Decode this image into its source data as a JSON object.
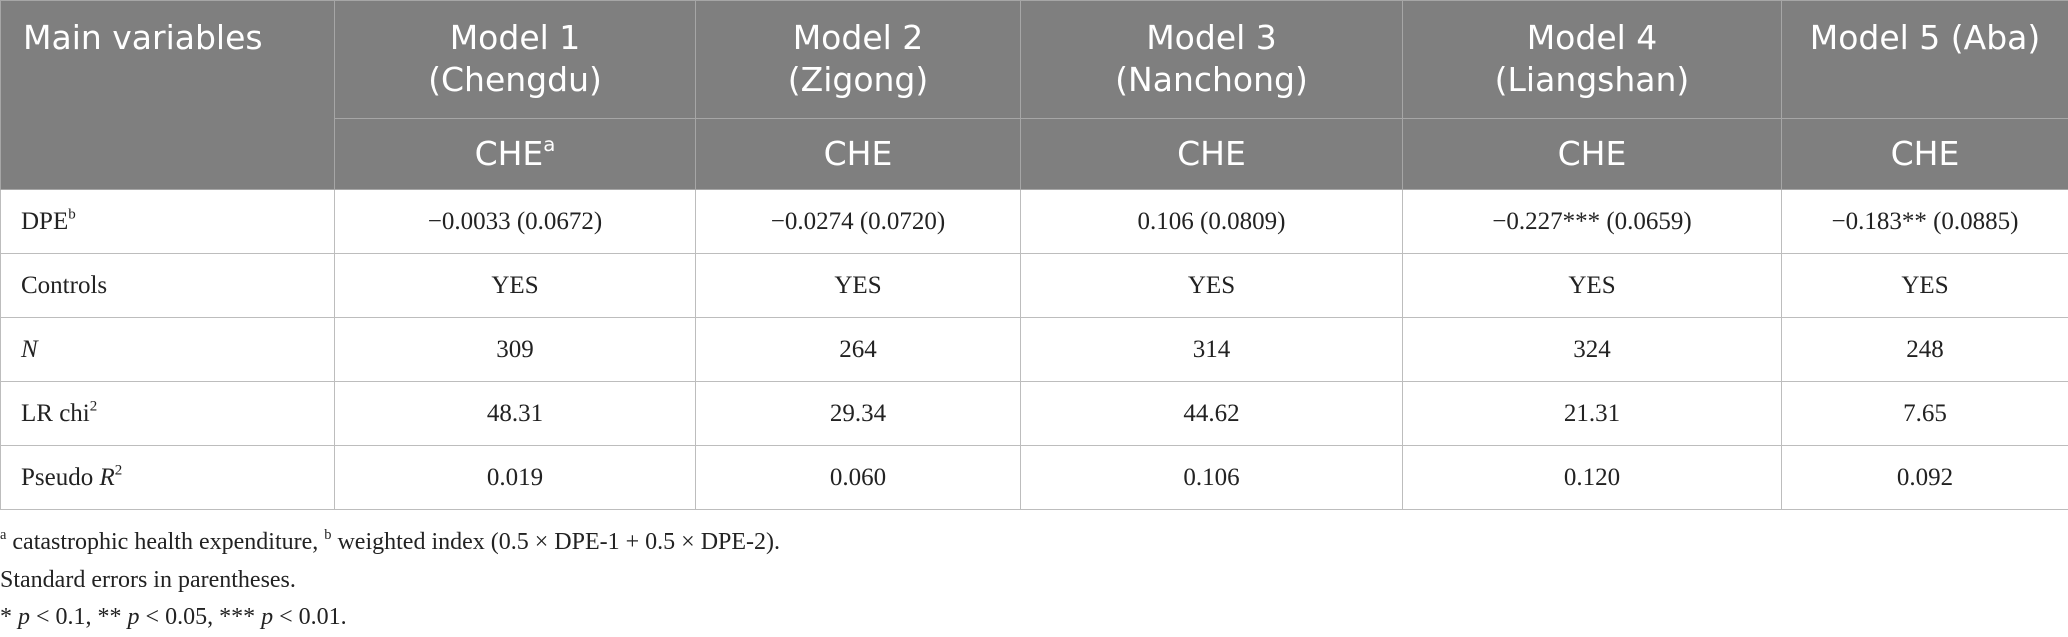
{
  "table": {
    "header": {
      "first": "Main variables",
      "models": [
        [
          "Model 1",
          "(Chengdu)"
        ],
        [
          "Model 2",
          "(Zigong)"
        ],
        [
          "Model 3",
          "(Nanchong)"
        ],
        [
          "Model 4",
          "(Liangshan)"
        ],
        [
          "Model 5 (Aba)"
        ]
      ],
      "sub": [
        [
          "CHE",
          {
            "sup": "a"
          }
        ],
        "CHE",
        "CHE",
        "CHE",
        "CHE"
      ]
    },
    "rows": [
      {
        "label": [
          "DPE",
          {
            "sup": "b"
          }
        ],
        "cells": [
          "−0.0033 (0.0672)",
          "−0.0274 (0.0720)",
          "0.106 (0.0809)",
          "−0.227*** (0.0659)",
          "−0.183** (0.0885)"
        ]
      },
      {
        "label": "Controls",
        "cells": [
          "YES",
          "YES",
          "YES",
          "YES",
          "YES"
        ]
      },
      {
        "label": [
          {
            "i": "N"
          }
        ],
        "cells": [
          "309",
          "264",
          "314",
          "324",
          "248"
        ]
      },
      {
        "label": [
          "LR chi",
          {
            "sup": "2"
          }
        ],
        "cells": [
          "48.31",
          "29.34",
          "44.62",
          "21.31",
          "7.65"
        ]
      },
      {
        "label": [
          "Pseudo ",
          {
            "i": "R"
          },
          {
            "sup": "2"
          }
        ],
        "cells": [
          "0.019",
          "0.060",
          "0.106",
          "0.120",
          "0.092"
        ]
      }
    ]
  },
  "footnotes": [
    [
      {
        "sup": "a"
      },
      " catastrophic health expenditure, ",
      {
        "sup": "b"
      },
      " weighted index (0.5 × DPE-1 + 0.5 × DPE-2)."
    ],
    "Standard errors in parentheses.",
    [
      "* ",
      {
        "i": "p"
      },
      " < 0.1, ** ",
      {
        "i": "p"
      },
      " < 0.05, *** ",
      {
        "i": "p"
      },
      " < 0.01."
    ]
  ]
}
